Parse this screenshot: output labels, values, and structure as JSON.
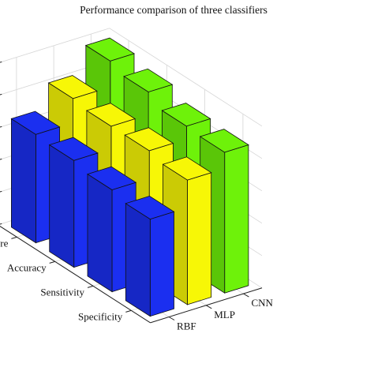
{
  "chart_data": {
    "type": "bar",
    "title": "Performance comparison of three classifiers",
    "categories": [
      "F-Score",
      "Accuracy",
      "Sensitivity",
      "Specificity"
    ],
    "series": [
      {
        "name": "RBF",
        "values": [
          67,
          66,
          63,
          60
        ],
        "color": "#1b2ff0"
      },
      {
        "name": "MLP",
        "values": [
          82,
          80,
          80,
          77
        ],
        "color": "#f7f706"
      },
      {
        "name": "CNN",
        "values": [
          98,
          94,
          88,
          87
        ],
        "color": "#6ef20a"
      }
    ],
    "y_ticks": [
      0,
      20,
      40,
      60,
      80,
      100
    ],
    "ylim": [
      0,
      100
    ],
    "grid": true,
    "view": "3d"
  }
}
